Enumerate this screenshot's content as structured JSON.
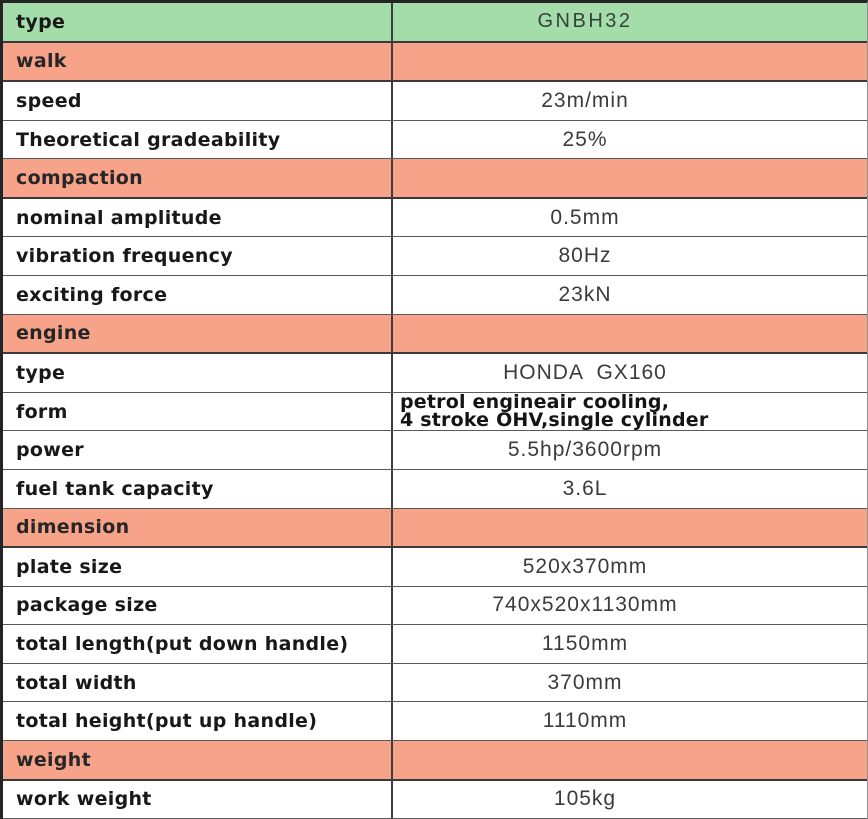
{
  "table": {
    "colors": {
      "header_bg": "#a4dcaa",
      "section_bg": "#f7a389",
      "border_dark": "#3a3a3a",
      "label_text": "#181818",
      "value_text": "#3b3b3b"
    },
    "header": {
      "label": "type",
      "value": "GNBH32"
    },
    "sections": [
      {
        "title": "walk",
        "rows": [
          {
            "label": "speed",
            "value": "23m/min"
          },
          {
            "label": "Theoretical gradeability",
            "value": "25%"
          }
        ]
      },
      {
        "title": "compaction",
        "rows": [
          {
            "label": "nominal amplitude",
            "value": "0.5mm"
          },
          {
            "label": "vibration frequency",
            "value": "80Hz"
          },
          {
            "label": "exciting force",
            "value": "23kN"
          }
        ]
      },
      {
        "title": "engine",
        "rows": [
          {
            "label": "type",
            "value": "HONDA  GX160"
          },
          {
            "label": "form",
            "value_lines": [
              "petrol engineair cooling,",
              "4 stroke OHV,single cylinder"
            ]
          },
          {
            "label": "power",
            "value": "5.5hp/3600rpm"
          },
          {
            "label": "fuel tank capacity",
            "value": "3.6L"
          }
        ]
      },
      {
        "title": "dimension",
        "rows": [
          {
            "label": "plate size",
            "value": "520x370mm"
          },
          {
            "label": "package size",
            "value": "740x520x1130mm"
          },
          {
            "label": "total length(put down handle)",
            "value": "1150mm"
          },
          {
            "label": "total width",
            "value": "370mm"
          },
          {
            "label": "total height(put up handle)",
            "value": "1110mm"
          }
        ]
      },
      {
        "title": "weight",
        "rows": [
          {
            "label": "work weight",
            "value": "105kg"
          }
        ]
      }
    ]
  }
}
